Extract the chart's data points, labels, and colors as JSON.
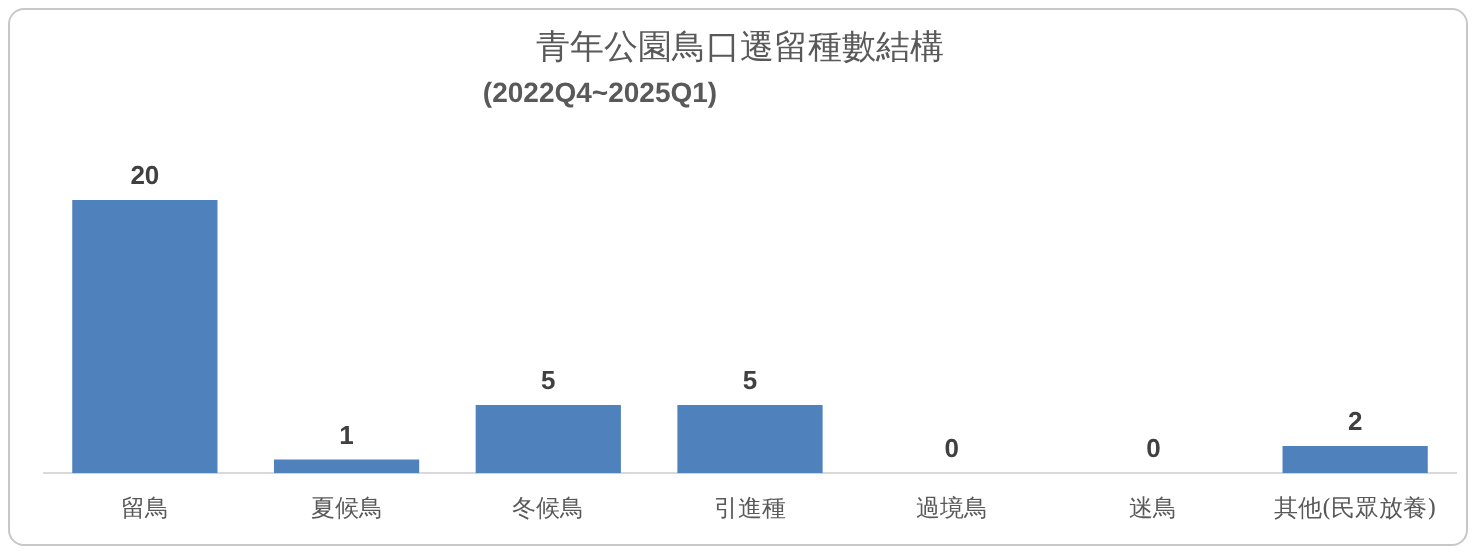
{
  "chart_data": {
    "type": "bar",
    "title": "青年公園鳥口遷留種數結構",
    "subtitle": "(2022Q4~2025Q1)",
    "categories": [
      "留鳥",
      "夏候鳥",
      "冬候鳥",
      "引進種",
      "過境鳥",
      "迷鳥",
      "其他(民眾放養)"
    ],
    "values": [
      20,
      1,
      5,
      5,
      0,
      0,
      2
    ],
    "color": "#4f81bd",
    "data_labels": true,
    "grid": false,
    "legend": false
  }
}
